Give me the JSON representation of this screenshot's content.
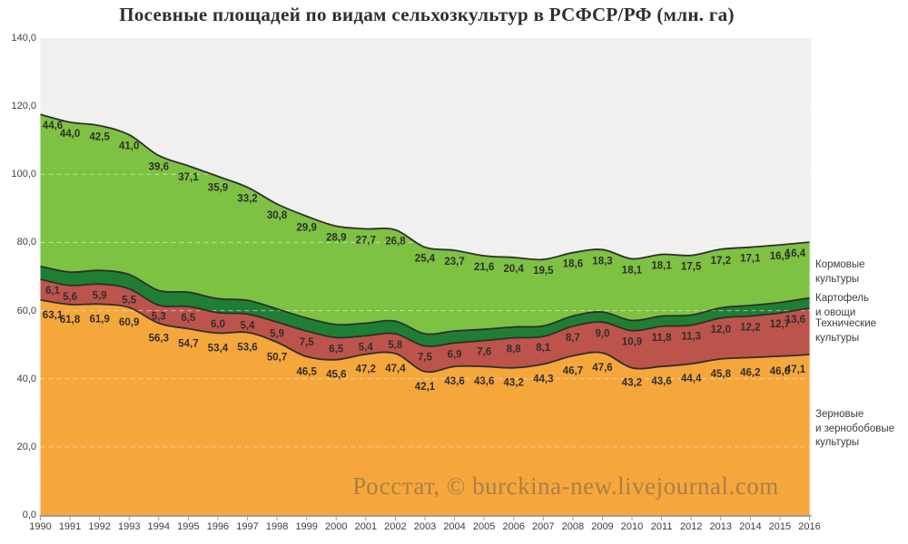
{
  "title": "Посевные площадей по видам сельхозкультур в РСФСР/РФ (млн. га)",
  "watermark": "Росстат, © burckina-new.livejournal.com",
  "colors": {
    "page_bg": "#ffffff",
    "plot_bg": "#f0f0ee",
    "gridline": "rgba(255,255,255,0.55)",
    "series_border": "#2e2e2e",
    "axis": "#9d9d9d",
    "label_text": "#2f2f2f",
    "grain_orange": "#f6a73b",
    "technical_red": "#bd544b",
    "potato_green": "#1f7e33",
    "fodder_green": "#7dc242"
  },
  "y_axis": {
    "tick_labels": [
      "0,0",
      "20,0",
      "40,0",
      "60,0",
      "80,0",
      "100,0",
      "120,0",
      "140,0"
    ]
  },
  "legend": {
    "items": [
      {
        "label": "Кормовые культуры",
        "lines": [
          "Кормовые",
          "культуры"
        ]
      },
      {
        "label": "Картофель и овощи",
        "lines": [
          "Картофель",
          "и овощи"
        ]
      },
      {
        "label": "Технические культуры",
        "lines": [
          "Технические",
          "культуры"
        ]
      },
      {
        "label": "Зерновые и зернобобовые культуры",
        "lines": [
          "Зерновые",
          "и зернобобовые",
          "культуры"
        ]
      }
    ]
  },
  "chart_data": {
    "type": "area",
    "stacked": true,
    "title": "Посевные площадей по видам сельхозкультур в РСФСР/РФ (млн. га)",
    "xlabel": "",
    "ylabel": "",
    "ylim": [
      0,
      140
    ],
    "ytick_step": 20,
    "grid": "horizontal-dashed",
    "legend_position": "right",
    "x": [
      1990,
      1991,
      1992,
      1993,
      1994,
      1995,
      1996,
      1997,
      1998,
      1999,
      2000,
      2001,
      2002,
      2003,
      2004,
      2005,
      2006,
      2007,
      2008,
      2009,
      2010,
      2011,
      2012,
      2013,
      2014,
      2015,
      2016
    ],
    "series": [
      {
        "id": "grain",
        "name": "Зерновые и зернобобовые культуры",
        "color": "#f6a73b",
        "data_labels_shown": true,
        "values": [
          63.1,
          61.8,
          61.9,
          60.9,
          56.3,
          54.7,
          53.4,
          53.6,
          50.7,
          46.5,
          45.6,
          47.2,
          47.4,
          42.1,
          43.6,
          43.6,
          43.2,
          44.3,
          46.7,
          47.6,
          43.2,
          43.6,
          44.4,
          45.8,
          46.2,
          46.6,
          47.1
        ]
      },
      {
        "id": "technical",
        "name": "Технические культуры",
        "color": "#bd544b",
        "data_labels_shown": true,
        "values": [
          6.1,
          5.6,
          5.9,
          5.5,
          5.3,
          6.5,
          6.0,
          5.4,
          5.9,
          7.5,
          6.5,
          5.4,
          5.8,
          7.5,
          6.9,
          7.6,
          8.8,
          8.1,
          8.7,
          9.0,
          10.9,
          11.8,
          11.3,
          12.0,
          12.2,
          12.7,
          13.6
        ]
      },
      {
        "id": "potato-vegetables",
        "name": "Картофель и овощи",
        "color": "#1f7e33",
        "data_labels_shown": false,
        "values": [
          3.8,
          3.9,
          4.0,
          4.2,
          4.3,
          4.2,
          4.1,
          4.0,
          3.9,
          3.8,
          3.8,
          3.7,
          3.7,
          3.6,
          3.5,
          3.3,
          3.2,
          3.1,
          3.0,
          3.0,
          3.0,
          3.0,
          3.0,
          3.0,
          3.1,
          3.1,
          3.0
        ]
      },
      {
        "id": "fodder",
        "name": "Кормовые культуры",
        "color": "#7dc242",
        "data_labels_shown": true,
        "values": [
          44.6,
          44.0,
          42.5,
          41.0,
          39.6,
          37.1,
          35.9,
          33.2,
          30.8,
          29.9,
          28.9,
          27.7,
          26.8,
          25.4,
          23.7,
          21.6,
          20.4,
          19.5,
          18.6,
          18.3,
          18.1,
          18.1,
          17.5,
          17.2,
          17.1,
          16.9,
          16.4
        ]
      }
    ]
  }
}
